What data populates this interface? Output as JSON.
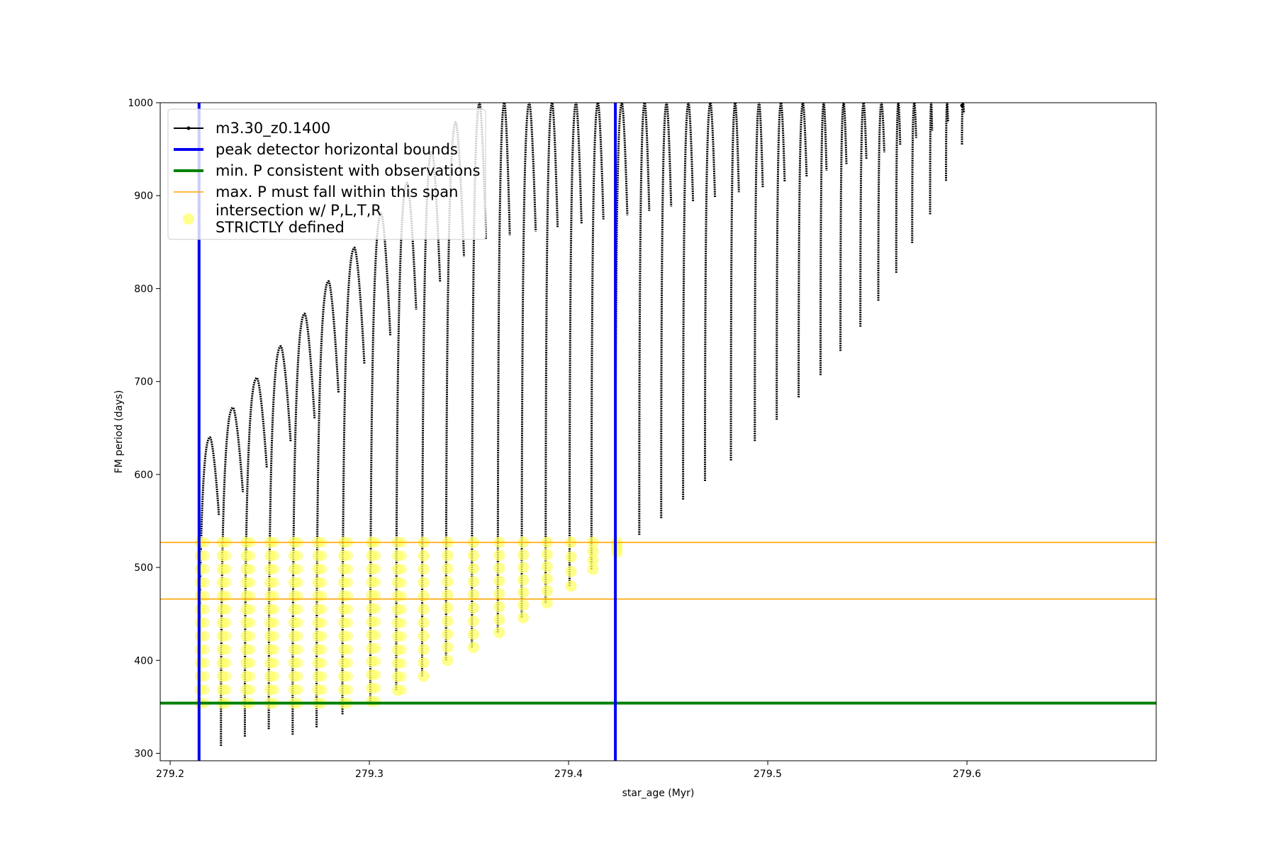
{
  "chart_data": {
    "type": "line",
    "xlabel": "star_age (Myr)",
    "ylabel": "FM period (days)",
    "xlim": [
      279.195,
      279.695
    ],
    "ylim": [
      292,
      1000
    ],
    "x_ticks": [
      279.2,
      279.3,
      279.4,
      279.5,
      279.6
    ],
    "x_tick_labels": [
      "279.2",
      "279.3",
      "279.4",
      "279.5",
      "279.6"
    ],
    "y_ticks": [
      300,
      400,
      500,
      600,
      700,
      800,
      900,
      1000
    ],
    "y_tick_labels": [
      "300",
      "400",
      "500",
      "600",
      "700",
      "800",
      "900",
      "1000"
    ],
    "grid": false,
    "legend_position": "upper-left",
    "legend": [
      {
        "label": "m3.30_z0.1400",
        "kind": "line-marker",
        "color": "#000000"
      },
      {
        "label": "peak detector horizontal bounds",
        "kind": "line",
        "color": "#0000ee"
      },
      {
        "label": "min. P consistent with observations",
        "kind": "line",
        "color": "#008000"
      },
      {
        "label": "max. P must fall within this span",
        "kind": "line",
        "color": "#ffa500"
      },
      {
        "label_lines": [
          "intersection w/ P,L,T,R",
          "STRICTLY defined"
        ],
        "kind": "marker",
        "color": "#ffff66"
      }
    ],
    "series": [
      {
        "name": "m3.30_z0.1400",
        "color": "#000000",
        "pulses": [
          {
            "age": 279.2145,
            "min": 302,
            "peak": 640,
            "end": 279.2245
          },
          {
            "age": 279.2255,
            "min": 308,
            "peak": 672,
            "end": 279.2365
          },
          {
            "age": 279.2375,
            "min": 318,
            "peak": 704,
            "end": 279.2485
          },
          {
            "age": 279.2495,
            "min": 326,
            "peak": 738,
            "end": 279.2605
          },
          {
            "age": 279.2615,
            "min": 320,
            "peak": 773,
            "end": 279.2725
          },
          {
            "age": 279.2735,
            "min": 328,
            "peak": 808,
            "end": 279.2845
          },
          {
            "age": 279.2865,
            "min": 342,
            "peak": 844,
            "end": 279.2975
          },
          {
            "age": 279.3005,
            "min": 356,
            "peak": 881,
            "end": 279.3105
          },
          {
            "age": 279.3135,
            "min": 368,
            "peak": 914,
            "end": 279.3235
          },
          {
            "age": 279.3265,
            "min": 383,
            "peak": 948,
            "end": 279.3355
          },
          {
            "age": 279.3385,
            "min": 400,
            "peak": 979,
            "end": 279.3475
          },
          {
            "age": 279.3515,
            "min": 414,
            "peak": 1000,
            "end": 279.3585
          },
          {
            "age": 279.3645,
            "min": 430,
            "peak": 1000,
            "end": 279.3705
          },
          {
            "age": 279.3765,
            "min": 446,
            "peak": 1000,
            "end": 279.3835
          },
          {
            "age": 279.3885,
            "min": 462,
            "peak": 1000,
            "end": 279.3945
          },
          {
            "age": 279.4005,
            "min": 480,
            "peak": 1000,
            "end": 279.4065
          },
          {
            "age": 279.4115,
            "min": 498,
            "peak": 1000,
            "end": 279.4175
          },
          {
            "age": 279.4235,
            "min": 516,
            "peak": 1000,
            "end": 279.4295
          },
          {
            "age": 279.4355,
            "min": 535,
            "peak": 1000,
            "end": 279.4405
          },
          {
            "age": 279.4465,
            "min": 553,
            "peak": 1000,
            "end": 279.4515
          },
          {
            "age": 279.4575,
            "min": 573,
            "peak": 1000,
            "end": 279.4625
          },
          {
            "age": 279.4685,
            "min": 593,
            "peak": 1000,
            "end": 279.4735
          },
          {
            "age": 279.4815,
            "min": 615,
            "peak": 1000,
            "end": 279.4855
          },
          {
            "age": 279.4935,
            "min": 636,
            "peak": 1000,
            "end": 279.4975
          },
          {
            "age": 279.5045,
            "min": 659,
            "peak": 1000,
            "end": 279.5085
          },
          {
            "age": 279.5155,
            "min": 683,
            "peak": 1000,
            "end": 279.5195
          },
          {
            "age": 279.5265,
            "min": 707,
            "peak": 1000,
            "end": 279.5295
          },
          {
            "age": 279.5365,
            "min": 733,
            "peak": 1000,
            "end": 279.5395
          },
          {
            "age": 279.5465,
            "min": 759,
            "peak": 1000,
            "end": 279.5495
          },
          {
            "age": 279.5555,
            "min": 787,
            "peak": 1000,
            "end": 279.5585
          },
          {
            "age": 279.5645,
            "min": 817,
            "peak": 1000,
            "end": 279.5665
          },
          {
            "age": 279.5725,
            "min": 849,
            "peak": 1000,
            "end": 279.5745
          },
          {
            "age": 279.5815,
            "min": 880,
            "peak": 1000,
            "end": 279.5825
          },
          {
            "age": 279.5895,
            "min": 916,
            "peak": 1000,
            "end": 279.5905
          },
          {
            "age": 279.5975,
            "min": 955,
            "peak": 1000,
            "end": 279.5985
          }
        ],
        "last_point": {
          "age": 279.5975,
          "value": 997
        }
      }
    ],
    "vertical_lines": [
      {
        "name": "peak detector horizontal bounds",
        "x": 279.2145,
        "color": "#0000ee"
      },
      {
        "name": "peak detector horizontal bounds",
        "x": 279.4235,
        "color": "#0000ee"
      }
    ],
    "horizontal_lines": [
      {
        "name": "min. P consistent with observations",
        "y": 354,
        "color": "#008000"
      },
      {
        "name": "max. P must fall within this span",
        "y": 527,
        "color": "#ffa500"
      },
      {
        "name": "max. P must fall within this span",
        "y": 466,
        "color": "#ffa500"
      }
    ],
    "highlight": {
      "name": "intersection w/ P,L,T,R STRICTLY defined",
      "color": "#ffff66",
      "y_range": [
        354,
        527
      ],
      "x_range": [
        279.2145,
        279.4235
      ]
    }
  }
}
